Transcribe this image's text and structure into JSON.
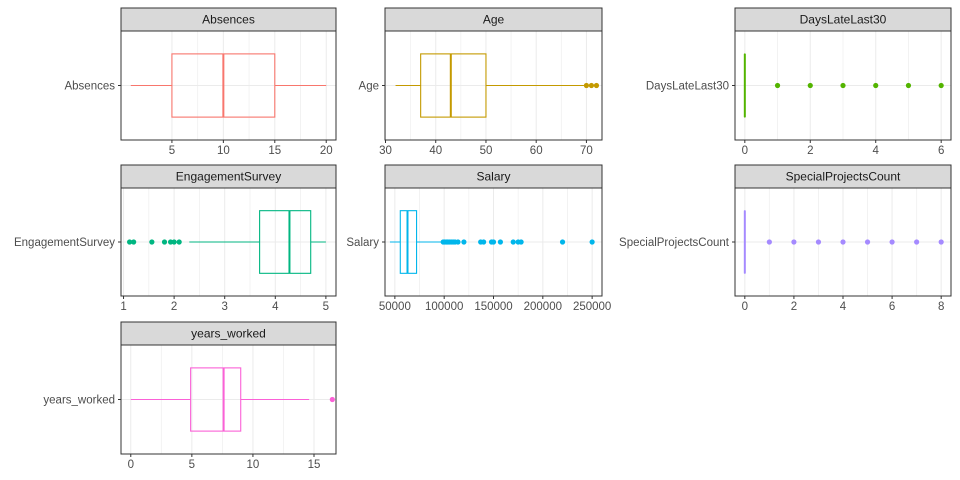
{
  "chart_data": [
    {
      "type": "boxplot",
      "facet": "Absences",
      "category": "Absences",
      "color": "#F8766D",
      "xlim": [
        0.05,
        20.95
      ],
      "ticks": [
        5,
        10,
        15,
        20
      ],
      "tick_labels": [
        "5",
        "10",
        "15",
        "20"
      ],
      "whisker_low": 1,
      "q1": 5,
      "median": 10,
      "q3": 15,
      "whisker_high": 20,
      "outliers": []
    },
    {
      "type": "boxplot",
      "facet": "Age",
      "category": "Age",
      "color": "#C49A00",
      "xlim": [
        29.9,
        73.1
      ],
      "ticks": [
        30,
        40,
        50,
        60,
        70
      ],
      "tick_labels": [
        "30",
        "40",
        "50",
        "60",
        "70"
      ],
      "whisker_low": 32,
      "q1": 37,
      "median": 43,
      "q3": 50,
      "whisker_high": 69.5,
      "outliers": [
        70,
        71,
        72
      ]
    },
    {
      "type": "boxplot",
      "facet": "DaysLateLast30",
      "category": "DaysLateLast30",
      "color": "#53B400",
      "xlim": [
        -0.3,
        6.3
      ],
      "ticks": [
        0,
        2,
        4,
        6
      ],
      "tick_labels": [
        "0",
        "2",
        "4",
        "6"
      ],
      "whisker_low": 0,
      "q1": 0,
      "median": 0,
      "q3": 0,
      "whisker_high": 0,
      "outliers": [
        1,
        2,
        3,
        4,
        5,
        6
      ]
    },
    {
      "type": "boxplot",
      "facet": "EngagementSurvey",
      "category": "EngagementSurvey",
      "color": "#00B681",
      "xlim": [
        0.95,
        5.2
      ],
      "ticks": [
        1,
        2,
        3,
        4,
        5
      ],
      "tick_labels": [
        "1",
        "2",
        "3",
        "4",
        "5"
      ],
      "whisker_low": 2.3,
      "q1": 3.69,
      "median": 4.28,
      "q3": 4.7,
      "whisker_high": 5,
      "outliers": [
        1.12,
        1.2,
        1.56,
        1.81,
        1.93,
        2.0,
        2.1
      ]
    },
    {
      "type": "boxplot",
      "facet": "Salary",
      "category": "Salary",
      "color": "#00B6EB",
      "xlim": [
        40000,
        260000
      ],
      "ticks": [
        50000,
        100000,
        150000,
        200000,
        250000
      ],
      "tick_labels": [
        "50000",
        "100000",
        "150000",
        "200000",
        "250000"
      ],
      "whisker_low": 45000,
      "q1": 55500,
      "median": 62800,
      "q3": 72000,
      "whisker_high": 97000,
      "outliers": [
        99000,
        100500,
        102000,
        103500,
        105000,
        107000,
        109000,
        111000,
        114000,
        120000,
        137000,
        140000,
        148000,
        150000,
        157000,
        170000,
        175000,
        178000,
        220000,
        250000
      ]
    },
    {
      "type": "boxplot",
      "facet": "SpecialProjectsCount",
      "category": "SpecialProjectsCount",
      "color": "#A58AFF",
      "xlim": [
        -0.4,
        8.4
      ],
      "ticks": [
        0,
        2,
        4,
        6,
        8
      ],
      "tick_labels": [
        "0",
        "2",
        "4",
        "6",
        "8"
      ],
      "whisker_low": 0,
      "q1": 0,
      "median": 0,
      "q3": 0,
      "whisker_high": 0,
      "outliers": [
        1,
        2,
        3,
        4,
        5,
        6,
        7,
        8
      ]
    },
    {
      "type": "boxplot",
      "facet": "years_worked",
      "category": "years_worked",
      "color": "#FB61D7",
      "xlim": [
        -0.8,
        16.8
      ],
      "ticks": [
        0,
        5,
        10,
        15
      ],
      "tick_labels": [
        "0",
        "5",
        "10",
        "15"
      ],
      "whisker_low": 0,
      "q1": 4.9,
      "median": 7.6,
      "q3": 9,
      "whisker_high": 14.6,
      "outliers": [
        16.5
      ]
    }
  ]
}
